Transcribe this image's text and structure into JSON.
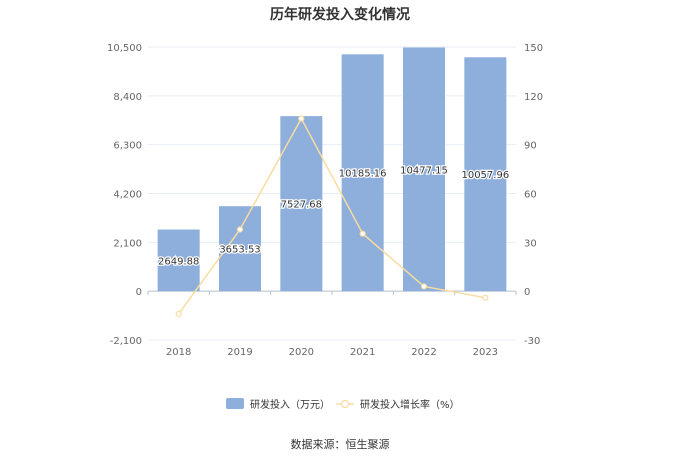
{
  "chart_data": {
    "type": "bar+line",
    "title": "历年研发投入变化情况",
    "categories": [
      "2018",
      "2019",
      "2020",
      "2021",
      "2022",
      "2023"
    ],
    "series": [
      {
        "name": "研发投入（万元）",
        "kind": "bar",
        "axis": "left",
        "values": [
          2649.88,
          3653.53,
          7527.68,
          10185.16,
          10477.15,
          10057.96
        ],
        "labels": [
          "2649.88",
          "3653.53",
          "7527.68",
          "10185.16",
          "10477.15",
          "10057.96"
        ],
        "color": "#8eaedc"
      },
      {
        "name": "研发投入增长率（%）",
        "kind": "line",
        "axis": "right",
        "values": [
          -14,
          37.9,
          106,
          35.3,
          2.9,
          -4
        ],
        "color": "#f8dca0"
      }
    ],
    "y_left": {
      "min": -2100,
      "max": 10500,
      "ticks": [
        -2100,
        0,
        2100,
        4200,
        6300,
        8400,
        10500
      ],
      "tick_labels": [
        "-2,100",
        "0",
        "2,100",
        "4,200",
        "6,300",
        "8,400",
        "10,500"
      ]
    },
    "y_right": {
      "min": -30,
      "max": 150,
      "ticks": [
        -30,
        0,
        30,
        60,
        90,
        120,
        150
      ],
      "tick_labels": [
        "-30",
        "0",
        "30",
        "60",
        "90",
        "120",
        "150"
      ]
    },
    "grid": true,
    "legend_position": "bottom"
  },
  "footer": {
    "source": "数据来源：恒生聚源"
  }
}
